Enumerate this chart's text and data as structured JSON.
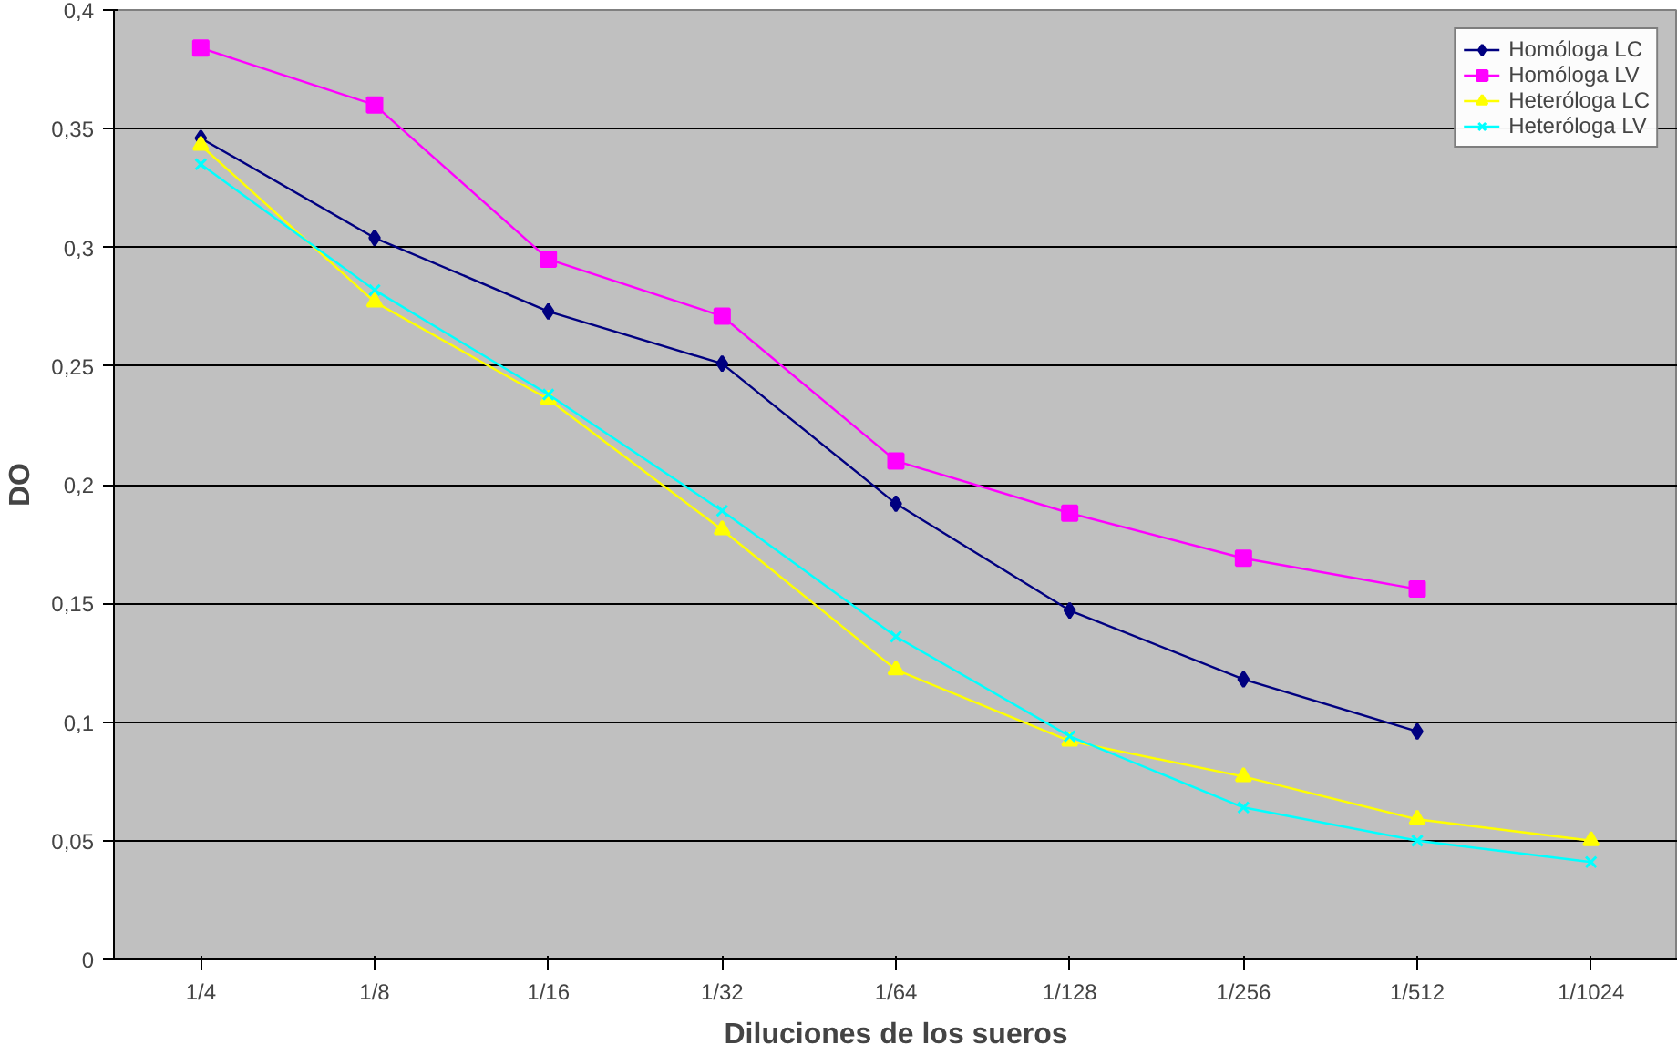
{
  "chart_data": {
    "type": "line",
    "xlabel": "Diluciones de los sueros",
    "ylabel": "DO",
    "categories": [
      "1/4",
      "1/8",
      "1/16",
      "1/32",
      "1/64",
      "1/128",
      "1/256",
      "1/512",
      "1/1024"
    ],
    "series": [
      {
        "name": "Homóloga LC",
        "color": "#000080",
        "marker": "diamond",
        "values": [
          0.346,
          0.304,
          0.273,
          0.251,
          0.192,
          0.147,
          0.118,
          0.096,
          null
        ]
      },
      {
        "name": "Homóloga LV",
        "color": "#ff00ff",
        "marker": "square",
        "values": [
          0.384,
          0.36,
          0.295,
          0.271,
          0.21,
          0.188,
          0.169,
          0.156,
          null
        ]
      },
      {
        "name": "Heteróloga LC",
        "color": "#ffff00",
        "marker": "triangle",
        "values": [
          0.343,
          0.277,
          0.236,
          0.181,
          0.122,
          0.092,
          0.077,
          0.059,
          0.05
        ]
      },
      {
        "name": "Heteróloga LV",
        "color": "#00ffff",
        "marker": "cross",
        "values": [
          0.335,
          0.282,
          0.238,
          0.189,
          0.136,
          0.094,
          0.064,
          0.05,
          0.041
        ]
      }
    ],
    "ylim": [
      0,
      0.4
    ],
    "yticks": [
      0,
      {
        "value": 0.05,
        "label": "0,05"
      },
      {
        "value": 0.1,
        "label": "0,1"
      },
      {
        "value": 0.15,
        "label": "0,15"
      },
      {
        "value": 0.2,
        "label": "0,2"
      },
      {
        "value": 0.25,
        "label": "0,25"
      },
      {
        "value": 0.3,
        "label": "0,3"
      },
      {
        "value": 0.35,
        "label": "0,35"
      },
      {
        "value": 0.4,
        "label": "0,4"
      }
    ],
    "grid": "y",
    "legend": "top right",
    "line_style": "solid"
  }
}
